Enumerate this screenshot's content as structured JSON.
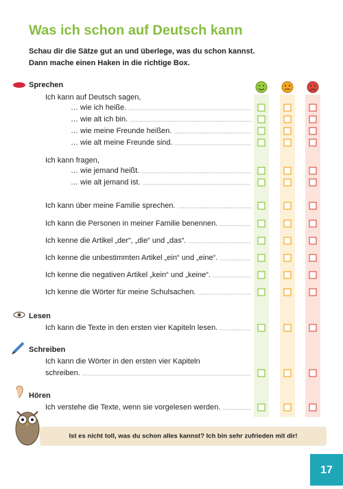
{
  "title": "Was ich schon auf Deutsch kann",
  "instructions": [
    "Schau dir die Sätze gut an und überlege, was du schon kannst.",
    "Dann mache einen Haken in die richtige Box."
  ],
  "sections": [
    {
      "title": "Sprechen",
      "lines": [
        "Ich kann auf Deutsch sagen,",
        "… wie ich heiße.",
        "… wie alt ich bin.",
        "… wie meine Freunde heißen.",
        "… wie alt meine Freunde sind.",
        "Ich kann fragen,",
        "… wie jemand heißt.",
        "… wie alt jemand ist.",
        "Ich kann über meine Familie sprechen.",
        "Ich kann die Personen in meiner Familie benennen.",
        "Ich kenne die Artikel „der“, „die“ und „das“.",
        "Ich kenne die unbestimmten Artikel „ein“ und „eine“.",
        "Ich kenne die negativen Artikel „kein“ und „keine“.",
        "Ich kenne die Wörter für meine Schulsachen."
      ]
    },
    {
      "title": "Lesen",
      "lines": [
        "Ich kann die Texte in den ersten vier Kapiteln lesen."
      ]
    },
    {
      "title": "Schreiben",
      "lines": [
        "Ich kann die Wörter in den ersten vier Kapiteln",
        "schreiben."
      ]
    },
    {
      "title": "Hören",
      "lines": [
        "Ich verstehe die Texte, wenn sie vorgelesen werden."
      ]
    }
  ],
  "footer": "Ist es nicht toll, was du schon alles kannst? Ich bin sehr zufrieden mit dir!",
  "page_number": 17
}
